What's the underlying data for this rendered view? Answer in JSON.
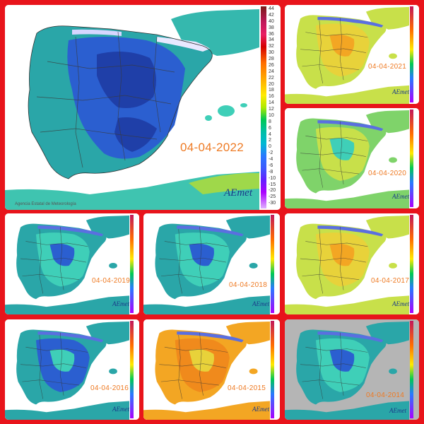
{
  "agency_label": "Agencia Estatal de Meteorología",
  "logo_text": "AEmet",
  "logo_subtext": "Agencia Estatal de Meteorología",
  "colors": {
    "frame": "#e8141b",
    "date_text": "#ee7a23",
    "sea": "#ffffff",
    "sea_2014": "#b5b5b5",
    "land_cold": "#2b5fd0",
    "land_cool": "#2aa6a8",
    "land_mild": "#3fcfb8",
    "land_warm": "#c8e04a",
    "land_hot": "#f3a623"
  },
  "legend_ticks": [
    "44",
    "42",
    "40",
    "38",
    "36",
    "34",
    "32",
    "30",
    "28",
    "26",
    "24",
    "22",
    "20",
    "18",
    "16",
    "14",
    "12",
    "10",
    "8",
    "6",
    "4",
    "2",
    "0",
    "-2",
    "-4",
    "-6",
    "-8",
    "-10",
    "-15",
    "-20",
    "-25",
    "-30"
  ],
  "panels": [
    {
      "id": "2022",
      "date": "04-04-2022",
      "palette": "cold"
    },
    {
      "id": "2021",
      "date": "04-04-2021",
      "palette": "warm"
    },
    {
      "id": "2020",
      "date": "04-04-2020",
      "palette": "mild"
    },
    {
      "id": "2019",
      "date": "04-04-2019",
      "palette": "cool"
    },
    {
      "id": "2018",
      "date": "04-04-2018",
      "palette": "cool"
    },
    {
      "id": "2017",
      "date": "04-04-2017",
      "palette": "warm"
    },
    {
      "id": "2016",
      "date": "04-04-2016",
      "palette": "coldish"
    },
    {
      "id": "2015",
      "date": "04-04-2015",
      "palette": "hot"
    },
    {
      "id": "2014",
      "date": "04-04-2014",
      "palette": "grey"
    }
  ]
}
